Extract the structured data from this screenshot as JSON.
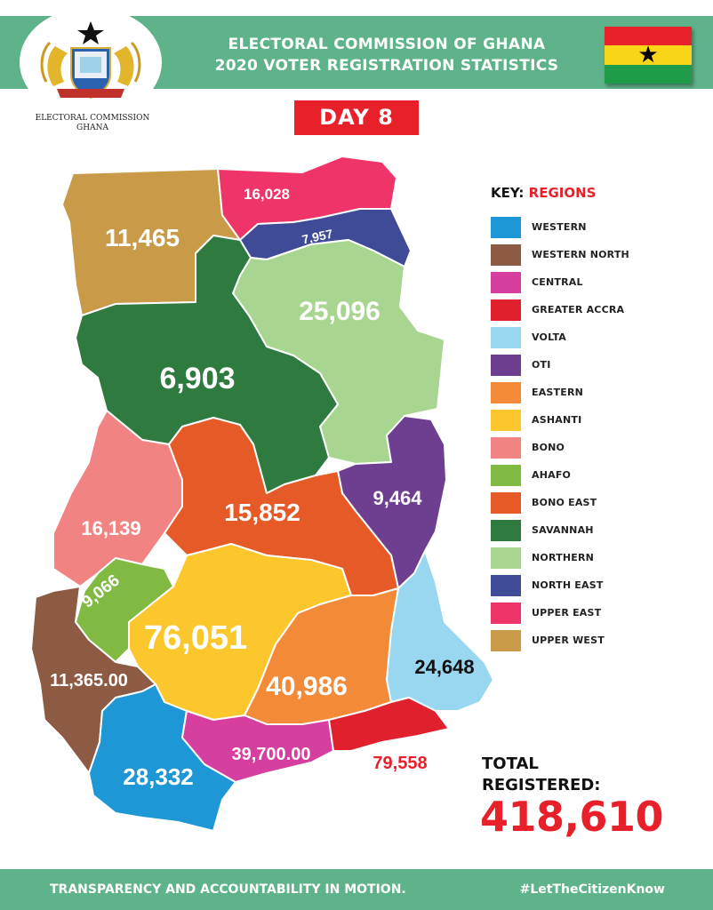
{
  "header": {
    "title_line1": "ELECTORAL COMMISSION OF GHANA",
    "title_line2": "2020 VOTER REGISTRATION STATISTICS",
    "logo_text_line1": "ELECTORAL COMMISSION",
    "logo_text_line2": "GHANA",
    "day_label": "DAY 8"
  },
  "flag": {
    "colors": [
      "#e8202a",
      "#f8d516",
      "#1f9c4a"
    ],
    "star_color": "#000000"
  },
  "key": {
    "title_prefix": "KEY:",
    "title_accent": "REGIONS",
    "items": [
      {
        "name": "WESTERN",
        "color": "#1e97d6"
      },
      {
        "name": "WESTERN NORTH",
        "color": "#8d5a44"
      },
      {
        "name": "CENTRAL",
        "color": "#d63fa0"
      },
      {
        "name": "GREATER ACCRA",
        "color": "#e0202c"
      },
      {
        "name": "VOLTA",
        "color": "#99d6f0"
      },
      {
        "name": "OTI",
        "color": "#6e3f90"
      },
      {
        "name": "EASTERN",
        "color": "#f38a37"
      },
      {
        "name": "ASHANTI",
        "color": "#fcc72c"
      },
      {
        "name": "BONO",
        "color": "#f28383"
      },
      {
        "name": "AHAFO",
        "color": "#80ba43"
      },
      {
        "name": "BONO EAST",
        "color": "#e55a26"
      },
      {
        "name": "SAVANNAH",
        "color": "#2e7a3f"
      },
      {
        "name": "NORTHERN",
        "color": "#a8d590"
      },
      {
        "name": "NORTH EAST",
        "color": "#3f4b96"
      },
      {
        "name": "UPPER EAST",
        "color": "#ee3468"
      },
      {
        "name": "UPPER WEST",
        "color": "#c99a47"
      }
    ]
  },
  "regions": {
    "upper_west": {
      "value": "11,465",
      "color": "#c99a47"
    },
    "upper_east": {
      "value": "16,028",
      "color": "#ee3468"
    },
    "north_east": {
      "value": "7,957",
      "color": "#3f4b96"
    },
    "northern": {
      "value": "25,096",
      "color": "#a8d590"
    },
    "savannah": {
      "value": "6,903",
      "color": "#2e7a3f"
    },
    "bono": {
      "value": "16,139",
      "color": "#f28383"
    },
    "bono_east": {
      "value": "15,852",
      "color": "#e55a26"
    },
    "oti": {
      "value": "9,464",
      "color": "#6e3f90"
    },
    "ahafo": {
      "value": "9,066",
      "color": "#80ba43"
    },
    "ashanti": {
      "value": "76,051",
      "color": "#fcc72c"
    },
    "western_north": {
      "value": "11,365.00",
      "color": "#8d5a44"
    },
    "eastern": {
      "value": "40,986",
      "color": "#f38a37"
    },
    "volta": {
      "value": "24,648",
      "color": "#99d6f0"
    },
    "western": {
      "value": "28,332",
      "color": "#1e97d6"
    },
    "central": {
      "value": "39,700.00",
      "color": "#d63fa0"
    },
    "greater_accra": {
      "value": "79,558",
      "color": "#e0202c"
    }
  },
  "total": {
    "label_line1": "TOTAL",
    "label_line2": "REGISTERED:",
    "value": "418,610"
  },
  "footer": {
    "left": "TRANSPARENCY AND ACCOUNTABILITY IN MOTION.",
    "right": "#LetTheCitizenKnow"
  },
  "colors": {
    "header_green": "#5fb38a",
    "accent_red": "#e8202a"
  }
}
